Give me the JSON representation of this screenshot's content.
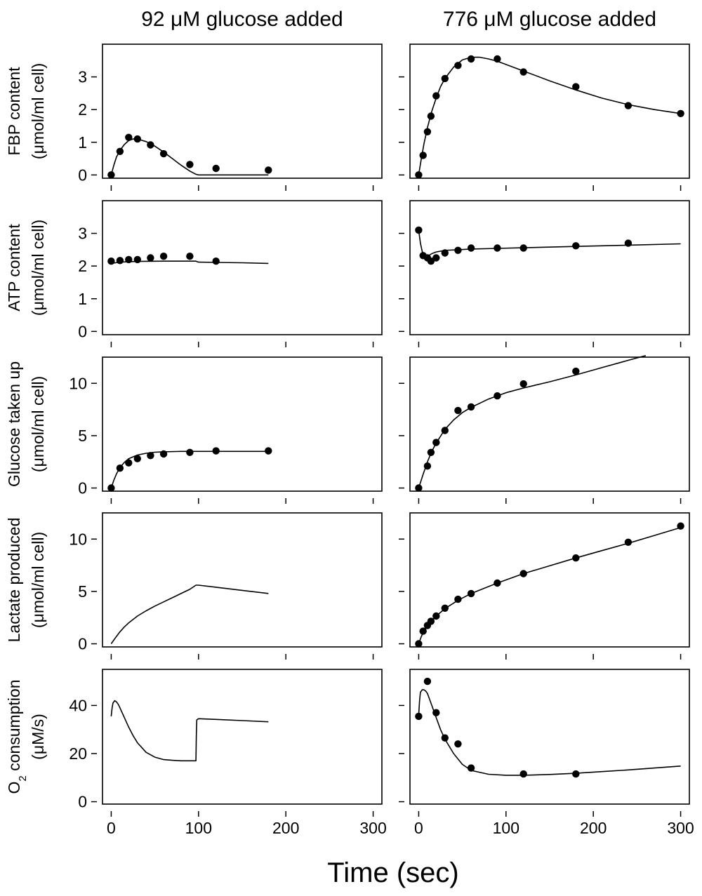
{
  "figure": {
    "xlabel": "Time (sec)",
    "column_titles": [
      "92 μM glucose added",
      "776 μM glucose added"
    ],
    "x_ticks": [
      0,
      100,
      200,
      300
    ],
    "xlim": [
      -10,
      310
    ]
  },
  "chart_data": [
    {
      "type": "scatter",
      "col": 0,
      "row": 0,
      "title": "92 μM glucose added",
      "ylabel_lines": [
        "FBP content",
        "(μmol/ml cell)"
      ],
      "ylim": [
        -0.1,
        4.0
      ],
      "yticks": [
        0,
        1,
        2,
        3
      ],
      "series": [
        {
          "kind": "points",
          "x": [
            0,
            10,
            20,
            30,
            45,
            60,
            90,
            120,
            180
          ],
          "y": [
            0.0,
            0.72,
            1.15,
            1.1,
            0.92,
            0.65,
            0.32,
            0.2,
            0.15
          ]
        },
        {
          "kind": "line",
          "x": [
            0,
            3,
            6,
            10,
            15,
            20,
            25,
            30,
            40,
            50,
            60,
            70,
            80,
            90,
            97,
            100,
            120,
            150,
            180
          ],
          "y": [
            0.0,
            0.3,
            0.55,
            0.75,
            0.93,
            1.05,
            1.1,
            1.1,
            1.02,
            0.88,
            0.7,
            0.5,
            0.3,
            0.12,
            0.02,
            0.0,
            0.0,
            0.0,
            0.0
          ]
        }
      ]
    },
    {
      "type": "scatter",
      "col": 1,
      "row": 0,
      "title": "776 μM glucose added",
      "ylabel_lines": [
        "FBP content",
        "(μmol/ml cell)"
      ],
      "ylim": [
        -0.1,
        4.0
      ],
      "yticks": [
        0,
        1,
        2,
        3
      ],
      "series": [
        {
          "kind": "points",
          "x": [
            0,
            5,
            10,
            14,
            20,
            30,
            45,
            60,
            90,
            120,
            180,
            240,
            300
          ],
          "y": [
            0.0,
            0.6,
            1.32,
            1.8,
            2.42,
            2.95,
            3.35,
            3.55,
            3.55,
            3.15,
            2.7,
            2.12,
            1.88
          ]
        },
        {
          "kind": "line",
          "x": [
            0,
            3,
            6,
            10,
            15,
            20,
            25,
            30,
            40,
            50,
            60,
            70,
            80,
            90,
            100,
            120,
            150,
            180,
            210,
            240,
            270,
            300
          ],
          "y": [
            0.0,
            0.5,
            0.95,
            1.45,
            1.95,
            2.35,
            2.7,
            2.95,
            3.3,
            3.52,
            3.6,
            3.6,
            3.55,
            3.48,
            3.38,
            3.18,
            2.88,
            2.6,
            2.35,
            2.15,
            2.0,
            1.88
          ]
        }
      ]
    },
    {
      "type": "scatter",
      "col": 0,
      "row": 1,
      "ylabel_lines": [
        "ATP content",
        "(μmol/ml cell)"
      ],
      "ylim": [
        -0.1,
        4.0
      ],
      "yticks": [
        0,
        1,
        2,
        3
      ],
      "series": [
        {
          "kind": "points",
          "x": [
            0,
            10,
            20,
            30,
            45,
            60,
            90,
            120
          ],
          "y": [
            2.15,
            2.17,
            2.2,
            2.2,
            2.25,
            2.3,
            2.3,
            2.15
          ]
        },
        {
          "kind": "line",
          "x": [
            0,
            5,
            10,
            20,
            30,
            60,
            90,
            97,
            100,
            120,
            150,
            180
          ],
          "y": [
            2.08,
            2.1,
            2.12,
            2.13,
            2.14,
            2.15,
            2.15,
            2.15,
            2.12,
            2.11,
            2.1,
            2.08
          ]
        }
      ]
    },
    {
      "type": "scatter",
      "col": 1,
      "row": 1,
      "ylabel_lines": [
        "ATP content",
        "(μmol/ml cell)"
      ],
      "ylim": [
        -0.1,
        4.0
      ],
      "yticks": [
        0,
        1,
        2,
        3
      ],
      "series": [
        {
          "kind": "points",
          "x": [
            0,
            5,
            10,
            14,
            20,
            30,
            45,
            60,
            90,
            120,
            180,
            240
          ],
          "y": [
            3.1,
            2.32,
            2.25,
            2.15,
            2.25,
            2.4,
            2.48,
            2.55,
            2.55,
            2.55,
            2.62,
            2.7
          ]
        },
        {
          "kind": "line",
          "x": [
            0,
            2,
            4,
            6,
            8,
            10,
            12,
            15,
            20,
            30,
            45,
            60,
            90,
            120,
            180,
            240,
            300
          ],
          "y": [
            3.1,
            2.7,
            2.45,
            2.32,
            2.27,
            2.28,
            2.33,
            2.38,
            2.43,
            2.48,
            2.5,
            2.52,
            2.54,
            2.56,
            2.6,
            2.64,
            2.68
          ]
        }
      ]
    },
    {
      "type": "scatter",
      "col": 0,
      "row": 2,
      "ylabel_lines": [
        "Glucose taken up",
        "(μmol/ml cell)"
      ],
      "ylim": [
        -0.3,
        12.5
      ],
      "yticks": [
        0,
        5,
        10
      ],
      "series": [
        {
          "kind": "points",
          "x": [
            0,
            10,
            20,
            30,
            45,
            60,
            90,
            120,
            180
          ],
          "y": [
            0.0,
            1.9,
            2.4,
            2.8,
            3.1,
            3.25,
            3.4,
            3.55,
            3.55
          ]
        },
        {
          "kind": "line",
          "x": [
            0,
            3,
            6,
            10,
            15,
            20,
            30,
            40,
            50,
            60,
            80,
            100,
            120,
            150,
            180
          ],
          "y": [
            0.0,
            0.75,
            1.35,
            1.95,
            2.45,
            2.8,
            3.15,
            3.32,
            3.42,
            3.46,
            3.5,
            3.5,
            3.5,
            3.5,
            3.5
          ]
        }
      ]
    },
    {
      "type": "scatter",
      "col": 1,
      "row": 2,
      "ylabel_lines": [
        "Glucose taken up",
        "(μmol/ml cell)"
      ],
      "ylim": [
        -0.3,
        12.5
      ],
      "yticks": [
        0,
        5,
        10
      ],
      "series": [
        {
          "kind": "points",
          "x": [
            0,
            10,
            14,
            20,
            30,
            45,
            60,
            90,
            120,
            180
          ],
          "y": [
            0.0,
            2.1,
            3.4,
            4.35,
            5.5,
            7.4,
            7.75,
            8.8,
            9.95,
            11.15
          ]
        },
        {
          "kind": "line",
          "x": [
            0,
            5,
            10,
            15,
            20,
            30,
            40,
            50,
            60,
            80,
            100,
            120,
            150,
            180,
            210,
            240,
            260
          ],
          "y": [
            0.0,
            1.3,
            2.5,
            3.5,
            4.3,
            5.6,
            6.5,
            7.2,
            7.7,
            8.5,
            9.1,
            9.55,
            10.15,
            10.8,
            11.5,
            12.2,
            12.65
          ]
        }
      ]
    },
    {
      "type": "line",
      "col": 0,
      "row": 3,
      "ylabel_lines": [
        "Lactate produced",
        "(μmol/ml cell)"
      ],
      "ylim": [
        -0.3,
        12.5
      ],
      "yticks": [
        0,
        5,
        10
      ],
      "series": [
        {
          "kind": "line",
          "x": [
            0,
            5,
            10,
            15,
            20,
            30,
            40,
            50,
            60,
            70,
            80,
            90,
            97,
            100,
            120,
            150,
            180
          ],
          "y": [
            0.0,
            0.6,
            1.15,
            1.6,
            2.0,
            2.65,
            3.15,
            3.6,
            4.0,
            4.4,
            4.8,
            5.2,
            5.6,
            5.6,
            5.4,
            5.1,
            4.8
          ]
        }
      ]
    },
    {
      "type": "scatter",
      "col": 1,
      "row": 3,
      "ylabel_lines": [
        "Lactate produced",
        "(μmol/ml cell)"
      ],
      "ylim": [
        -0.3,
        12.5
      ],
      "yticks": [
        0,
        5,
        10
      ],
      "series": [
        {
          "kind": "points",
          "x": [
            0,
            5,
            10,
            14,
            20,
            30,
            45,
            60,
            90,
            120,
            180,
            240,
            300
          ],
          "y": [
            0.0,
            1.2,
            1.75,
            2.15,
            2.65,
            3.4,
            4.25,
            4.8,
            5.8,
            6.7,
            8.2,
            9.7,
            11.25
          ]
        },
        {
          "kind": "line",
          "x": [
            0,
            3,
            6,
            10,
            15,
            20,
            30,
            45,
            60,
            90,
            120,
            150,
            180,
            210,
            240,
            270,
            300
          ],
          "y": [
            0.0,
            0.7,
            1.2,
            1.7,
            2.2,
            2.65,
            3.35,
            4.15,
            4.8,
            5.8,
            6.7,
            7.45,
            8.2,
            8.9,
            9.6,
            10.35,
            11.1
          ]
        }
      ]
    },
    {
      "type": "line",
      "col": 0,
      "row": 4,
      "ylabel_lines": [
        "O2 consumption",
        "(μM/s)"
      ],
      "ylabel_sub": "2",
      "ylim": [
        -1,
        55
      ],
      "yticks": [
        0,
        20,
        40
      ],
      "series": [
        {
          "kind": "line",
          "x": [
            0,
            1,
            2,
            4,
            6,
            8,
            10,
            15,
            20,
            25,
            30,
            40,
            50,
            60,
            70,
            80,
            90,
            97,
            97.5,
            98,
            100,
            120,
            150,
            180
          ],
          "y": [
            35.5,
            39,
            41,
            42,
            41.5,
            40.5,
            39,
            35,
            31,
            27.5,
            24.5,
            20.5,
            18.5,
            17.5,
            17.2,
            17,
            17,
            17,
            28,
            34,
            34.5,
            34.2,
            33.7,
            33.2
          ]
        }
      ]
    },
    {
      "type": "scatter",
      "col": 1,
      "row": 4,
      "ylabel_lines": [
        "O2 consumption",
        "(μM/s)"
      ],
      "ylabel_sub": "2",
      "ylim": [
        -1,
        55
      ],
      "yticks": [
        0,
        20,
        40
      ],
      "series": [
        {
          "kind": "points",
          "x": [
            0,
            10,
            20,
            30,
            45,
            60,
            120,
            180
          ],
          "y": [
            35.5,
            50,
            37,
            26.5,
            24,
            14,
            11.5,
            11.5
          ]
        },
        {
          "kind": "line",
          "x": [
            0,
            1,
            2,
            4,
            6,
            8,
            10,
            12,
            15,
            20,
            25,
            30,
            40,
            50,
            60,
            80,
            100,
            120,
            150,
            180,
            210,
            240,
            270,
            300
          ],
          "y": [
            36,
            42,
            45.5,
            46.5,
            46.5,
            46,
            45,
            43,
            40,
            35,
            30,
            26,
            20,
            15.5,
            13,
            11.4,
            11,
            11,
            11.3,
            11.8,
            12.5,
            13.2,
            14,
            14.8
          ]
        }
      ]
    }
  ]
}
